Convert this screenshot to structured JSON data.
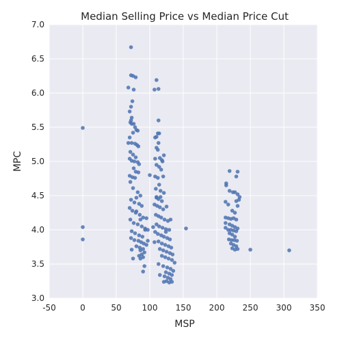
{
  "chart_data": {
    "type": "scatter",
    "title": "Median Selling Price vs Median Price Cut",
    "xlabel": "MSP",
    "ylabel": "MPC",
    "xlim": [
      -50,
      350
    ],
    "ylim": [
      3.0,
      7.0
    ],
    "x_ticks": [
      "-50",
      "0",
      "50",
      "100",
      "150",
      "200",
      "250",
      "300",
      "350"
    ],
    "y_ticks": [
      "3.0",
      "3.5",
      "4.0",
      "4.5",
      "5.0",
      "5.5",
      "6.0",
      "6.5",
      "7.0"
    ],
    "grid": true,
    "background_color": "#EAEAF2",
    "point_color": "#4C72B0",
    "series": [
      {
        "points": [
          [
            0,
            5.49
          ],
          [
            0,
            4.04
          ],
          [
            0,
            3.86
          ],
          [
            72,
            6.67
          ],
          [
            72,
            6.26
          ],
          [
            75,
            6.25
          ],
          [
            79,
            6.23
          ],
          [
            68,
            6.08
          ],
          [
            76,
            6.05
          ],
          [
            74,
            5.88
          ],
          [
            72,
            5.8
          ],
          [
            70,
            5.73
          ],
          [
            73,
            5.64
          ],
          [
            72,
            5.6
          ],
          [
            71,
            5.57
          ],
          [
            73,
            5.55
          ],
          [
            76,
            5.55
          ],
          [
            78,
            5.5
          ],
          [
            80,
            5.46
          ],
          [
            82,
            5.45
          ],
          [
            75,
            5.42
          ],
          [
            70,
            5.35
          ],
          [
            68,
            5.27
          ],
          [
            73,
            5.27
          ],
          [
            78,
            5.26
          ],
          [
            81,
            5.24
          ],
          [
            83,
            5.22
          ],
          [
            71,
            5.14
          ],
          [
            75,
            5.1
          ],
          [
            79,
            5.06
          ],
          [
            70,
            5.04
          ],
          [
            73,
            5.01
          ],
          [
            77,
            5.0
          ],
          [
            82,
            4.99
          ],
          [
            84,
            4.96
          ],
          [
            76,
            4.9
          ],
          [
            79,
            4.85
          ],
          [
            83,
            4.84
          ],
          [
            70,
            4.79
          ],
          [
            74,
            4.77
          ],
          [
            78,
            4.76
          ],
          [
            71,
            4.7
          ],
          [
            75,
            4.61
          ],
          [
            82,
            4.55
          ],
          [
            86,
            4.5
          ],
          [
            80,
            4.47
          ],
          [
            72,
            4.44
          ],
          [
            77,
            4.4
          ],
          [
            84,
            4.38
          ],
          [
            88,
            4.35
          ],
          [
            70,
            4.32
          ],
          [
            74,
            4.28
          ],
          [
            79,
            4.25
          ],
          [
            85,
            4.22
          ],
          [
            90,
            4.18
          ],
          [
            95,
            4.17
          ],
          [
            71,
            4.15
          ],
          [
            76,
            4.1
          ],
          [
            82,
            4.08
          ],
          [
            88,
            4.05
          ],
          [
            93,
            4.02
          ],
          [
            97,
            4.0
          ],
          [
            73,
            3.98
          ],
          [
            78,
            3.95
          ],
          [
            84,
            3.92
          ],
          [
            89,
            3.9
          ],
          [
            72,
            3.88
          ],
          [
            77,
            3.85
          ],
          [
            83,
            3.84
          ],
          [
            87,
            3.82
          ],
          [
            91,
            3.8
          ],
          [
            95,
            3.78
          ],
          [
            80,
            3.76
          ],
          [
            85,
            3.74
          ],
          [
            90,
            3.72
          ],
          [
            86,
            3.7
          ],
          [
            92,
            3.67
          ],
          [
            88,
            3.64
          ],
          [
            84,
            3.62
          ],
          [
            90,
            3.6
          ],
          [
            86,
            3.58
          ],
          [
            75,
            3.58
          ],
          [
            73,
            3.71
          ],
          [
            92,
            3.47
          ],
          [
            90,
            3.39
          ],
          [
            80,
            4.27
          ],
          [
            86,
            4.15
          ],
          [
            93,
            4.0
          ],
          [
            97,
            3.84
          ],
          [
            100,
            4.8
          ],
          [
            107,
            6.05
          ],
          [
            110,
            6.19
          ],
          [
            113,
            6.06
          ],
          [
            113,
            5.6
          ],
          [
            112,
            5.41
          ],
          [
            114,
            5.41
          ],
          [
            110,
            5.36
          ],
          [
            108,
            5.35
          ],
          [
            113,
            5.27
          ],
          [
            110,
            5.2
          ],
          [
            112,
            5.17
          ],
          [
            108,
            5.04
          ],
          [
            115,
            5.05
          ],
          [
            118,
            5.02
          ],
          [
            121,
            5.09
          ],
          [
            119,
            5.0
          ],
          [
            110,
            4.95
          ],
          [
            114,
            4.92
          ],
          [
            117,
            4.88
          ],
          [
            108,
            4.78
          ],
          [
            112,
            4.76
          ],
          [
            120,
            4.78
          ],
          [
            114,
            4.66
          ],
          [
            109,
            4.6
          ],
          [
            116,
            4.57
          ],
          [
            121,
            4.54
          ],
          [
            110,
            4.48
          ],
          [
            113,
            4.45
          ],
          [
            118,
            4.42
          ],
          [
            107,
            4.37
          ],
          [
            111,
            4.35
          ],
          [
            115,
            4.33
          ],
          [
            120,
            4.3
          ],
          [
            125,
            4.34
          ],
          [
            109,
            4.22
          ],
          [
            113,
            4.2
          ],
          [
            117,
            4.18
          ],
          [
            122,
            4.15
          ],
          [
            127,
            4.13
          ],
          [
            131,
            4.15
          ],
          [
            110,
            4.08
          ],
          [
            114,
            4.05
          ],
          [
            119,
            4.03
          ],
          [
            124,
            4.01
          ],
          [
            129,
            4.0
          ],
          [
            108,
            3.97
          ],
          [
            112,
            3.94
          ],
          [
            117,
            3.92
          ],
          [
            121,
            3.9
          ],
          [
            126,
            3.88
          ],
          [
            130,
            3.86
          ],
          [
            113,
            3.83
          ],
          [
            118,
            3.8
          ],
          [
            123,
            3.78
          ],
          [
            128,
            3.76
          ],
          [
            132,
            3.74
          ],
          [
            115,
            3.72
          ],
          [
            120,
            3.7
          ],
          [
            125,
            3.68
          ],
          [
            130,
            3.66
          ],
          [
            134,
            3.64
          ],
          [
            118,
            3.62
          ],
          [
            123,
            3.6
          ],
          [
            128,
            3.58
          ],
          [
            133,
            3.56
          ],
          [
            137,
            3.52
          ],
          [
            113,
            3.5
          ],
          [
            120,
            3.47
          ],
          [
            126,
            3.45
          ],
          [
            131,
            3.43
          ],
          [
            135,
            3.4
          ],
          [
            124,
            3.38
          ],
          [
            129,
            3.36
          ],
          [
            133,
            3.34
          ],
          [
            122,
            3.32
          ],
          [
            127,
            3.3
          ],
          [
            131,
            3.28
          ],
          [
            125,
            3.25
          ],
          [
            129,
            3.23
          ],
          [
            133,
            3.24
          ],
          [
            121,
            3.24
          ],
          [
            115,
            3.34
          ],
          [
            107,
            3.82
          ],
          [
            105,
            4.04
          ],
          [
            110,
            4.47
          ],
          [
            116,
            4.48
          ],
          [
            124,
            3.97
          ],
          [
            154,
            4.02
          ],
          [
            214,
            4.68
          ],
          [
            219,
            4.86
          ],
          [
            231,
            4.85
          ],
          [
            229,
            4.78
          ],
          [
            214,
            4.65
          ],
          [
            219,
            4.57
          ],
          [
            224,
            4.55
          ],
          [
            227,
            4.55
          ],
          [
            231,
            4.52
          ],
          [
            234,
            4.48
          ],
          [
            233,
            4.44
          ],
          [
            229,
            4.42
          ],
          [
            213,
            4.41
          ],
          [
            217,
            4.37
          ],
          [
            231,
            4.35
          ],
          [
            223,
            4.28
          ],
          [
            227,
            4.25
          ],
          [
            213,
            4.18
          ],
          [
            217,
            4.17
          ],
          [
            221,
            4.16
          ],
          [
            225,
            4.17
          ],
          [
            229,
            4.15
          ],
          [
            213,
            4.1
          ],
          [
            219,
            4.08
          ],
          [
            223,
            4.06
          ],
          [
            227,
            4.04
          ],
          [
            231,
            4.02
          ],
          [
            213,
            4.03
          ],
          [
            217,
            4.0
          ],
          [
            221,
            4.0
          ],
          [
            225,
            3.99
          ],
          [
            229,
            3.98
          ],
          [
            219,
            3.95
          ],
          [
            223,
            3.93
          ],
          [
            227,
            3.9
          ],
          [
            218,
            3.86
          ],
          [
            222,
            3.85
          ],
          [
            226,
            3.85
          ],
          [
            230,
            3.84
          ],
          [
            221,
            3.8
          ],
          [
            225,
            3.78
          ],
          [
            229,
            3.76
          ],
          [
            223,
            3.73
          ],
          [
            227,
            3.71
          ],
          [
            231,
            3.72
          ],
          [
            250,
            3.71
          ],
          [
            308,
            3.7
          ]
        ]
      }
    ]
  }
}
